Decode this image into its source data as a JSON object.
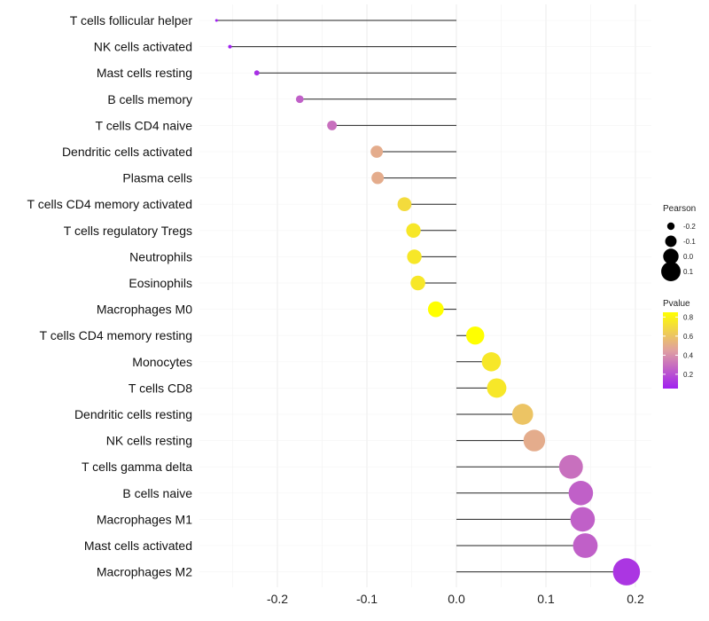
{
  "chart_data": {
    "type": "lollipop",
    "xlabel": "",
    "ylabel": "",
    "xlim": [
      -0.28,
      0.2
    ],
    "x_ticks": [
      -0.2,
      -0.1,
      0.0,
      0.1,
      0.2
    ],
    "x_tick_labels": [
      "-0.2",
      "-0.1",
      "0.0",
      "0.1",
      "0.2"
    ],
    "grid": true,
    "categories": [
      "T cells follicular helper",
      "NK cells activated",
      "Mast cells resting",
      "B cells memory",
      "T cells CD4 naive",
      "Dendritic cells activated",
      "Plasma cells",
      "T cells CD4 memory activated",
      "T cells regulatory  Tregs ",
      "Neutrophils",
      "Eosinophils",
      "Macrophages M0",
      "T cells CD4 memory resting",
      "Monocytes",
      "T cells CD8",
      "Dendritic cells resting",
      "NK cells resting",
      "T cells gamma delta",
      "B cells naive",
      "Macrophages M1",
      "Mast cells activated",
      "Macrophages M2"
    ],
    "pearson": [
      -0.268,
      -0.253,
      -0.223,
      -0.175,
      -0.139,
      -0.089,
      -0.088,
      -0.058,
      -0.048,
      -0.047,
      -0.043,
      -0.023,
      0.021,
      0.039,
      0.045,
      0.074,
      0.087,
      0.128,
      0.139,
      0.141,
      0.144,
      0.19
    ],
    "pvalue": [
      0.02,
      0.04,
      0.1,
      0.25,
      0.3,
      0.5,
      0.5,
      0.7,
      0.75,
      0.75,
      0.75,
      0.85,
      0.9,
      0.75,
      0.75,
      0.6,
      0.5,
      0.3,
      0.25,
      0.25,
      0.25,
      0.12
    ],
    "legend": {
      "size_title": "Pearson",
      "size_values": [
        -0.2,
        -0.1,
        0.0,
        0.1
      ],
      "size_labels": [
        "-0.2",
        "-0.1",
        "0.0",
        "0.1"
      ],
      "color_title": "Pvalue",
      "color_values": [
        0.2,
        0.4,
        0.6,
        0.8
      ],
      "color_labels": [
        "0.2",
        "0.4",
        "0.6",
        "0.8"
      ],
      "color_range": [
        0.05,
        0.85
      ],
      "color_low": "#a020f0",
      "color_mid": "#e0a0a0",
      "color_high": "#ffff00",
      "placement": "right"
    }
  }
}
